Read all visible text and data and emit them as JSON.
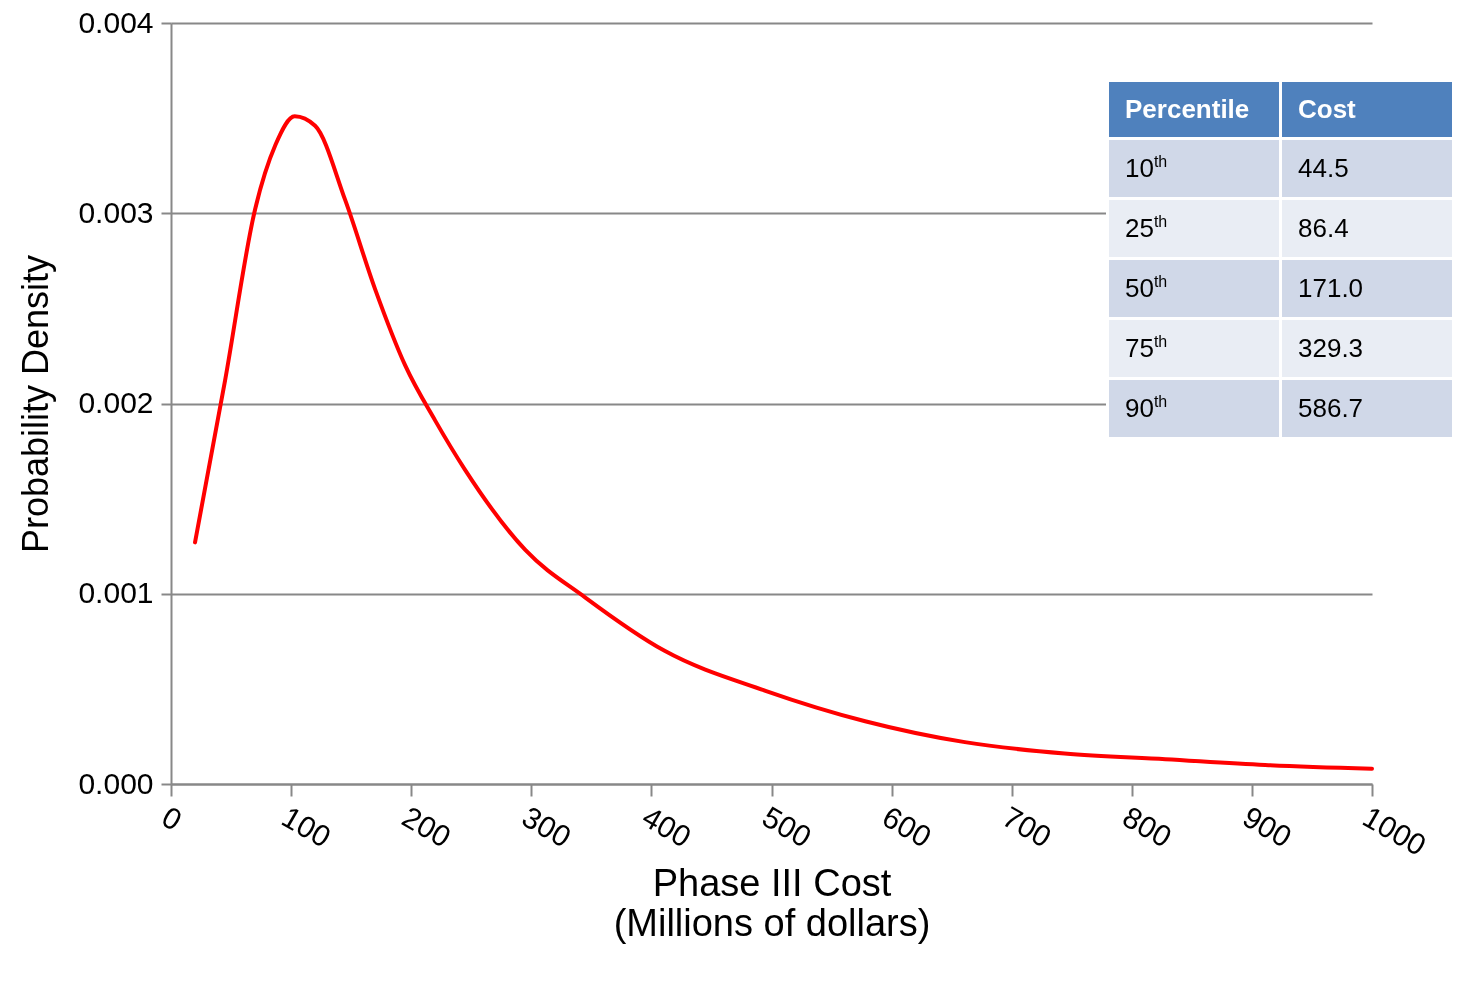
{
  "chart_data": {
    "type": "line",
    "xlabel": "Phase III Cost\n(Millions of dollars)",
    "ylabel": "Probability Density",
    "x": [
      20,
      45,
      70,
      87,
      103,
      120,
      145,
      170,
      195,
      220,
      245,
      295,
      345,
      411,
      495,
      578,
      661,
      744,
      828,
      911,
      1000
    ],
    "series": [
      {
        "color": "#ff0000",
        "values": [
          0.00127,
          0.00212,
          0.00302,
          0.00336,
          0.00351,
          0.00346,
          0.00307,
          0.0026,
          0.0022,
          0.00191,
          0.00165,
          0.00123,
          0.00098,
          0.0007,
          0.00049,
          0.00033,
          0.00022,
          0.00016,
          0.00013,
          0.0001,
          8e-05
        ]
      }
    ],
    "xlim": [
      0,
      1000
    ],
    "xticks": [
      0,
      100,
      200,
      300,
      400,
      500,
      600,
      700,
      800,
      900,
      1000
    ],
    "ylim": [
      0,
      0.004
    ],
    "yticks": [
      {
        "value": 0,
        "label": "0.000"
      },
      0.001,
      0.002,
      0.003,
      0.004
    ],
    "grid": "y",
    "legend": false,
    "marker": "none",
    "line_style": "solid",
    "annotations": [
      "Percentile",
      "Cost",
      "10$^{th}$",
      "44.5",
      "25$^{th}$",
      "86.4",
      "50$^{th}$",
      "171.0",
      "75$^{th}$",
      "329.3",
      "90$^{th}$",
      "586.7"
    ]
  }
}
